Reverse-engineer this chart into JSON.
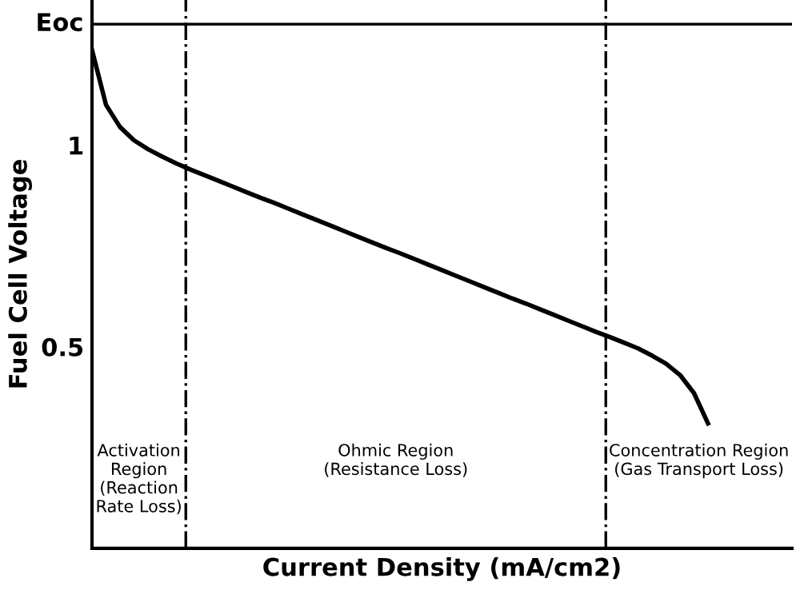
{
  "chart_data": {
    "type": "line",
    "xlabel": "Current Density (mA/cm2)",
    "ylabel": "Fuel Cell Voltage",
    "categories": [
      null,
      null,
      null,
      null,
      null,
      null,
      null,
      null,
      null,
      null,
      null,
      null,
      null,
      null,
      null,
      null,
      null,
      null,
      null,
      null,
      null,
      null,
      null,
      null,
      null,
      null,
      null,
      null,
      null,
      null,
      null,
      null,
      null,
      null,
      null,
      null,
      null,
      null,
      null,
      null,
      null,
      null,
      null,
      null,
      null,
      null,
      null,
      null,
      null,
      null,
      null
    ],
    "series": [
      {
        "color": "#000000",
        "values": [
          1.236,
          1.1,
          1.045,
          1.012,
          0.99,
          0.972,
          0.955,
          0.94,
          0.926,
          0.912,
          0.898,
          0.884,
          0.87,
          0.857,
          0.843,
          0.829,
          0.815,
          0.801,
          0.787,
          0.773,
          0.759,
          0.745,
          0.732,
          0.718,
          0.704,
          0.69,
          0.676,
          0.662,
          0.648,
          0.634,
          0.62,
          0.607,
          0.593,
          0.579,
          0.565,
          0.551,
          0.537,
          0.524,
          0.51,
          0.496,
          0.478,
          0.458,
          0.43,
          0.385,
          0.31,
          null,
          null,
          null,
          null,
          null,
          null
        ]
      }
    ],
    "ylim": [
      0,
      1.36
    ],
    "yticks": [
      0.5,
      1
    ],
    "tick_labels": "y",
    "marker": "none",
    "line_style": "solid",
    "grid": false,
    "legend": false,
    "ref_lines": [
      {
        "axis": "y",
        "value": 1.3,
        "label": "Eoc",
        "color": "#000000",
        "line_style": "solid"
      }
    ],
    "annotations": [
      "Activation\nRegion\n(Reaction\nRate Loss)",
      "Ohmic Region\n(Resistance Loss)",
      "Concentration Region\n(Gas Transport Loss)"
    ]
  }
}
